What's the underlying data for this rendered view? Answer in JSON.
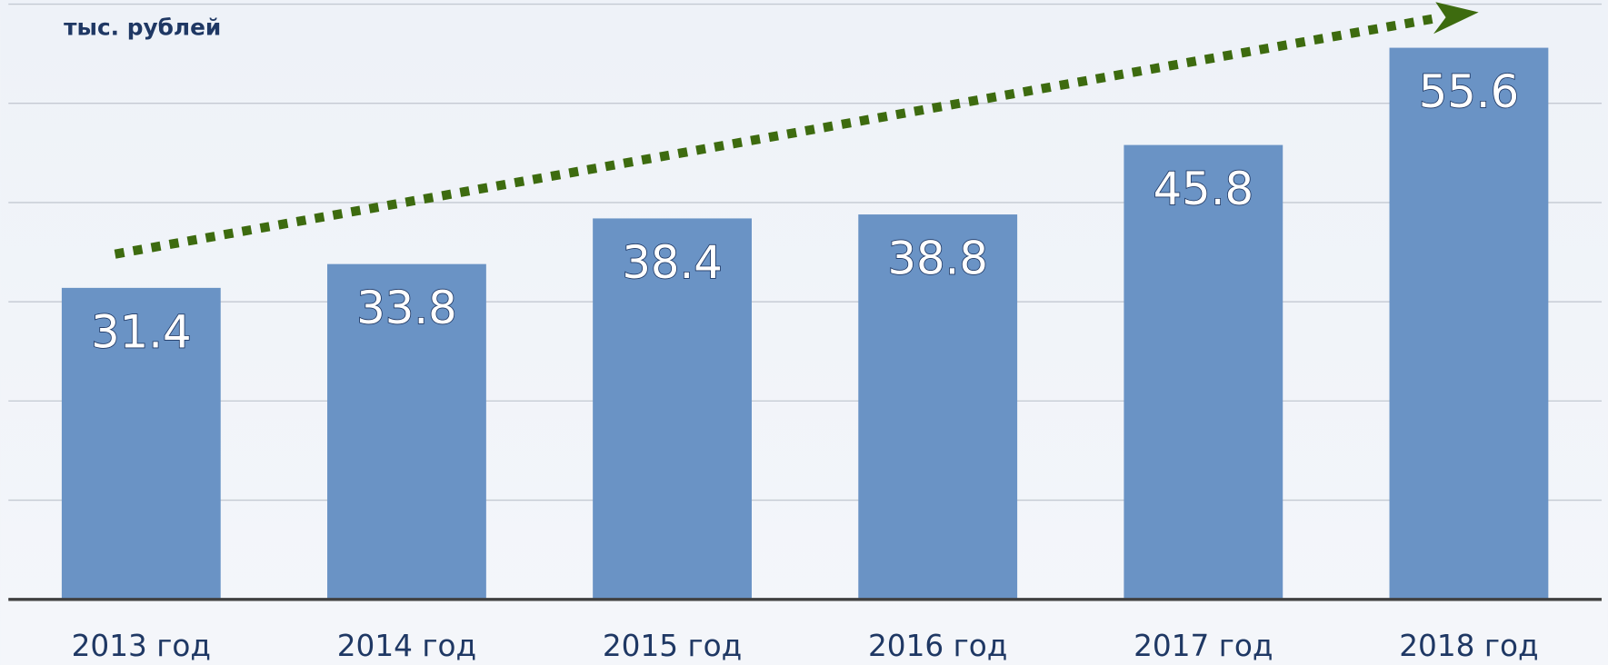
{
  "chart_data": {
    "type": "bar",
    "y_label": "тыс. рублей",
    "categories": [
      "2013 год",
      "2014 год",
      "2015 год",
      "2016 год",
      "2017 год",
      "2018 год"
    ],
    "values": [
      31.4,
      33.8,
      38.4,
      38.8,
      45.8,
      55.6
    ],
    "color": "#6a93c5",
    "ylim": [
      0,
      60
    ],
    "yticks": [
      0,
      10,
      20,
      30,
      40,
      50,
      60
    ],
    "grid": true
  }
}
